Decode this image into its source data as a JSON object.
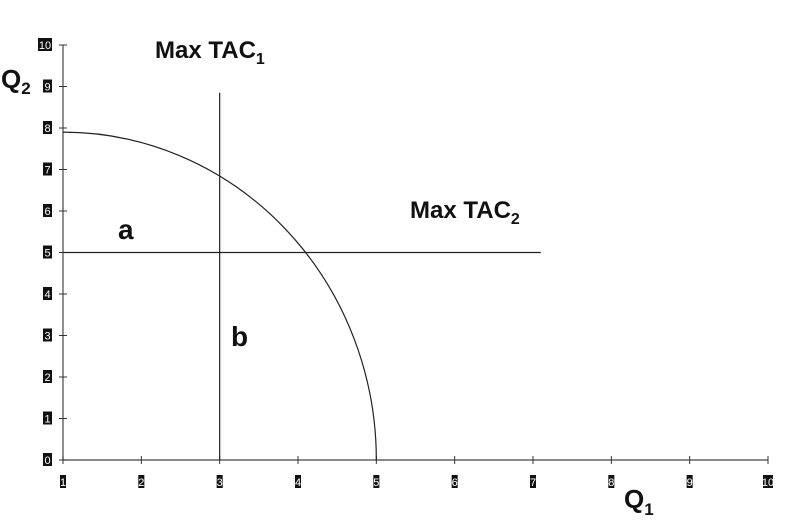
{
  "chart_data": {
    "type": "line",
    "x_ticks": [
      "1",
      "2",
      "3",
      "4",
      "5",
      "6",
      "7",
      "8",
      "9",
      "10"
    ],
    "y_ticks": [
      "0",
      "1",
      "2",
      "3",
      "4",
      "5",
      "6",
      "7",
      "8",
      "9",
      "10"
    ],
    "xlim": [
      1,
      10
    ],
    "ylim": [
      0,
      10
    ],
    "xlabel": {
      "main": "Q",
      "sub": "1"
    },
    "ylabel": {
      "main": "Q",
      "sub": "2"
    },
    "grid": false,
    "curve": {
      "shape": "quarter-ellipse",
      "center": [
        1,
        0
      ],
      "x_end": 5,
      "y_start": 7.9
    },
    "vertical_line": {
      "x": 3,
      "y_from": 0,
      "y_to": 8.85
    },
    "horizontal_line": {
      "y": 5,
      "x_from": 1,
      "x_to": 7.1
    },
    "annotations": [
      {
        "id": "max_tac1",
        "main": "Max TAC",
        "sub": "1"
      },
      {
        "id": "max_tac2",
        "main": "Max TAC",
        "sub": "2"
      },
      {
        "id": "a",
        "main": "a"
      },
      {
        "id": "b",
        "main": "b"
      }
    ]
  }
}
